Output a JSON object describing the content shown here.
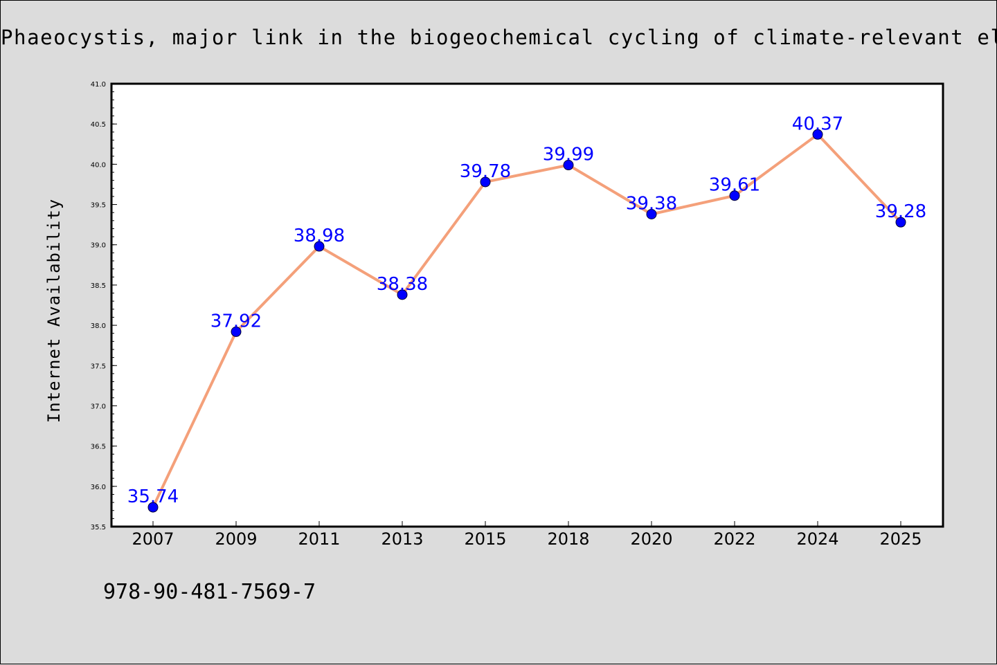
{
  "chart_data": {
    "type": "line",
    "title": "Phaeocystis, major link in the biogeochemical cycling of climate-relevant elements",
    "xlabel": "",
    "ylabel": "Internet Availability",
    "categories": [
      "2007",
      "2009",
      "2011",
      "2013",
      "2015",
      "2018",
      "2020",
      "2022",
      "2024",
      "2025"
    ],
    "series": [
      {
        "values": [
          35.74,
          37.92,
          38.98,
          38.38,
          39.78,
          39.99,
          39.38,
          39.61,
          40.37,
          39.28
        ],
        "line_color": "#f4a07a",
        "marker_color": "#0000ff"
      }
    ],
    "data_labels": [
      "35.74",
      "37.92",
      "38.98",
      "38.38",
      "39.78",
      "39.99",
      "39.38",
      "39.61",
      "40.37",
      "39.28"
    ],
    "ylim": [
      35.5,
      41.0
    ],
    "yticks": [
      "35.5",
      "36.0",
      "36.5",
      "37.0",
      "37.5",
      "38.0",
      "38.5",
      "39.0",
      "39.5",
      "40.0",
      "40.5",
      "41.0"
    ],
    "grid": false,
    "legend": "none"
  },
  "footer": {
    "isbn": "978-90-481-7569-7"
  }
}
